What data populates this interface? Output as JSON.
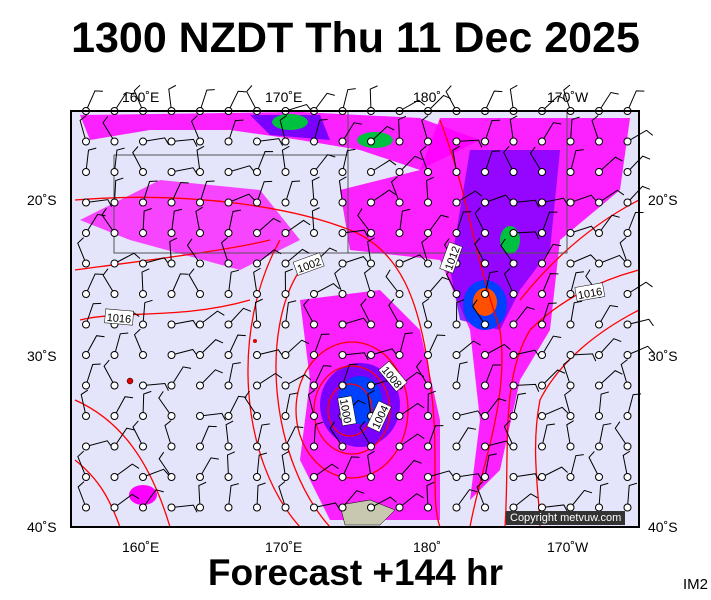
{
  "title": "1300 NZDT Thu 11 Dec 2025",
  "footer": "Forecast +144 hr",
  "model_tag": "IM2",
  "copyright": "Copyright metvuw.com",
  "axes": {
    "lon_top": [
      "160˚E",
      "170˚E",
      "180˚",
      "170˚W"
    ],
    "lon_bottom": [
      "160˚E",
      "170˚E",
      "180˚",
      "170˚W"
    ],
    "lat_left": [
      "20˚S",
      "30˚S",
      "40˚S"
    ],
    "lat_right": [
      "20˚S",
      "30˚S",
      "40˚S"
    ]
  },
  "isobar_labels": [
    "1002",
    "1012",
    "1016",
    "1016",
    "1008",
    "1000",
    "1004"
  ],
  "colors": {
    "ocean": "#e4e4fa",
    "rain_light": "#ff00ff",
    "rain_mid": "#7a00ff",
    "rain_heavy": "#0040ff",
    "isobar": "#ff0000"
  }
}
